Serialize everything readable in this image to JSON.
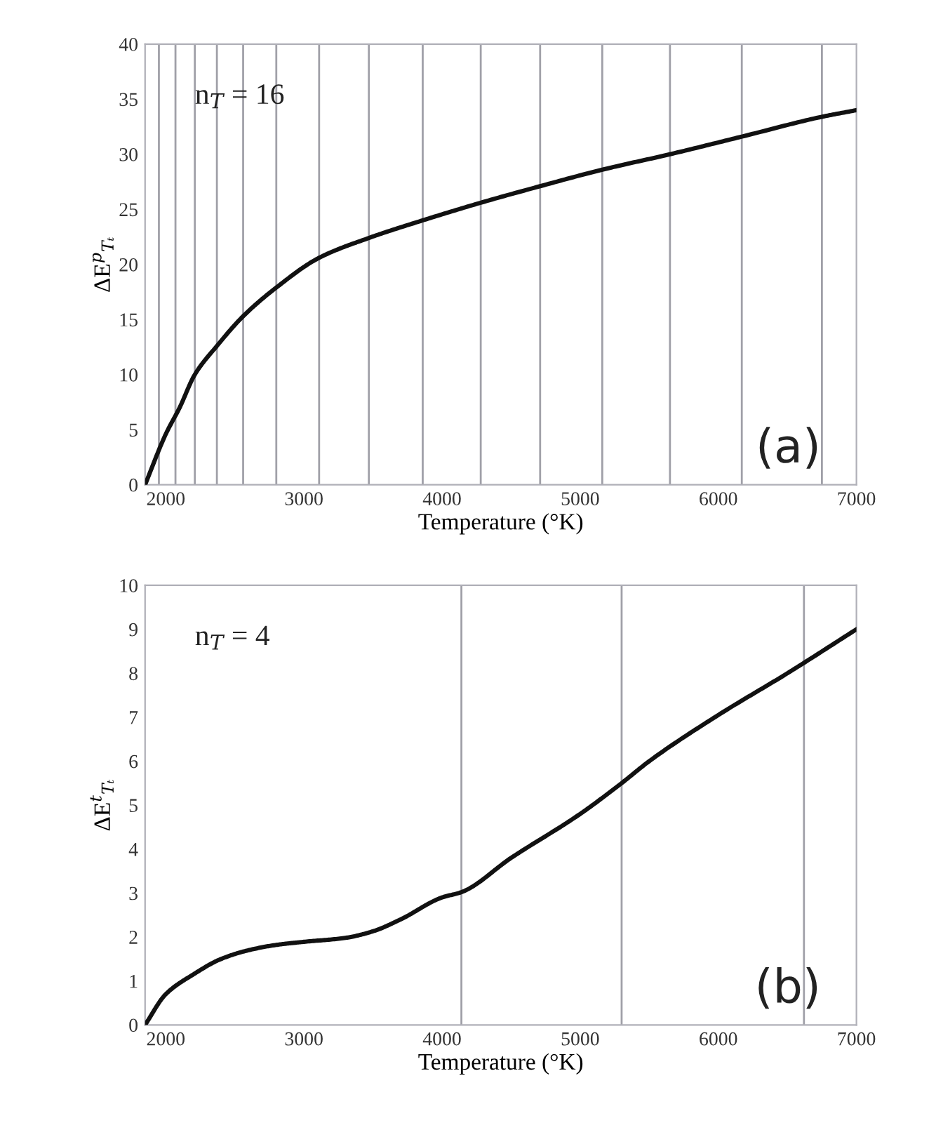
{
  "chart_data": [
    {
      "type": "line",
      "xlabel": "Temperature (°K)",
      "ylabel": "ΔE$^{p}$$_{Tₜ}$",
      "annotations": [
        "n$_{T}$ = 16",
        "(a)"
      ],
      "x": [
        1850,
        2000,
        2100,
        2210,
        2370,
        2560,
        2800,
        3110,
        3470,
        3860,
        4280,
        4710,
        5160,
        5650,
        6170,
        6750,
        7000
      ],
      "series": [
        {
          "color": "#111111",
          "values": [
            0,
            4.6,
            7,
            10,
            12.6,
            15.3,
            17.9,
            20.6,
            22.4,
            24,
            25.6,
            27.1,
            28.6,
            30,
            31.6,
            33.4,
            34
          ]
        }
      ],
      "xlim": [
        1850,
        7000
      ],
      "xticks": [
        2000,
        3000,
        4000,
        5000,
        6000,
        7000
      ],
      "ylim": [
        0,
        40
      ],
      "yticks": [
        0,
        5,
        10,
        15,
        20,
        25,
        30,
        35,
        40
      ],
      "grid": false,
      "legend": false,
      "marker": "none",
      "line_style": "solid",
      "ref_lines": [
        {
          "axis": "x",
          "value": 1950,
          "color": "#a0a0a8"
        },
        {
          "axis": "x",
          "value": 2070,
          "color": "#a0a0a8"
        },
        {
          "axis": "x",
          "value": 2210,
          "color": "#a0a0a8"
        },
        {
          "axis": "x",
          "value": 2370,
          "color": "#a0a0a8"
        },
        {
          "axis": "x",
          "value": 2560,
          "color": "#a0a0a8"
        },
        {
          "axis": "x",
          "value": 2800,
          "color": "#a0a0a8"
        },
        {
          "axis": "x",
          "value": 3110,
          "color": "#a0a0a8"
        },
        {
          "axis": "x",
          "value": 3470,
          "color": "#a0a0a8"
        },
        {
          "axis": "x",
          "value": 3860,
          "color": "#a0a0a8"
        },
        {
          "axis": "x",
          "value": 4280,
          "color": "#a0a0a8"
        },
        {
          "axis": "x",
          "value": 4710,
          "color": "#a0a0a8"
        },
        {
          "axis": "x",
          "value": 5160,
          "color": "#a0a0a8"
        },
        {
          "axis": "x",
          "value": 5650,
          "color": "#a0a0a8"
        },
        {
          "axis": "x",
          "value": 6170,
          "color": "#a0a0a8"
        },
        {
          "axis": "x",
          "value": 6750,
          "color": "#a0a0a8"
        }
      ]
    },
    {
      "type": "line",
      "xlabel": "Temperature (°K)",
      "ylabel": "ΔE$^{t}$$_{Tₜ}$",
      "annotations": [
        "n$_{T}$ = 4",
        "(b)"
      ],
      "x": [
        1850,
        2000,
        2200,
        2400,
        2600,
        2800,
        3000,
        3300,
        3500,
        3700,
        4000,
        4140,
        4500,
        5000,
        5300,
        5500,
        6000,
        6500,
        7000
      ],
      "series": [
        {
          "color": "#111111",
          "values": [
            0,
            0.7,
            1.15,
            1.5,
            1.7,
            1.82,
            1.89,
            1.98,
            2.13,
            2.4,
            2.9,
            3.02,
            3.8,
            4.8,
            5.5,
            6,
            7.05,
            8,
            9
          ]
        }
      ],
      "xlim": [
        1850,
        7000
      ],
      "xticks": [
        2000,
        3000,
        4000,
        5000,
        6000,
        7000
      ],
      "ylim": [
        0,
        10
      ],
      "yticks": [
        0,
        1,
        2,
        3,
        4,
        5,
        6,
        7,
        8,
        9,
        10
      ],
      "grid": false,
      "legend": false,
      "marker": "none",
      "line_style": "solid",
      "ref_lines": [
        {
          "axis": "x",
          "value": 4140,
          "color": "#a0a0a8"
        },
        {
          "axis": "x",
          "value": 5300,
          "color": "#a0a0a8"
        },
        {
          "axis": "x",
          "value": 6620,
          "color": "#a0a0a8"
        }
      ]
    }
  ]
}
